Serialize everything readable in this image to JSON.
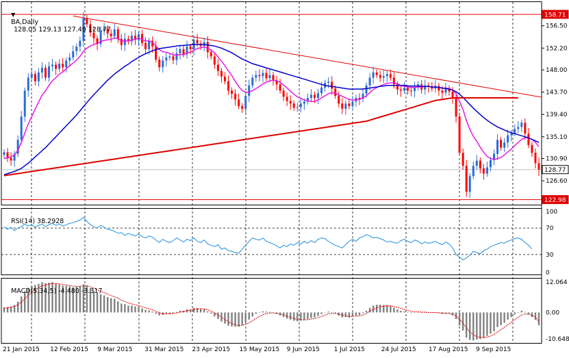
{
  "header": {
    "symbol_label": "BA,Daily",
    "ohlc": "128.05 129.13 127.49 128.77"
  },
  "rsi_header": {
    "label": "RSI(14) 38.2928"
  },
  "macd_header": {
    "label": "MACD(5,34,5) -4.480 -3.317"
  },
  "colors": {
    "background": "#ffffff",
    "candle_up_fill": "#2a6bd8",
    "candle_down_fill": "#ff0000",
    "sma_short": "#e619e6",
    "sma_mid": "#0000cc",
    "sma_long": "#e00000",
    "trendline": "#e00000",
    "rsi_line": "#1e8fe0",
    "macd_hist": "#808080",
    "macd_signal": "#e00000",
    "grid": "#000000",
    "price_tag_bg": "#e00000"
  },
  "chart_data": [
    {
      "type": "line",
      "title": "BA,Daily",
      "subtype": "candlestick",
      "ylim": [
        122.0,
        159.5
      ],
      "y_ticks": [
        "156.50",
        "152.20",
        "148.00",
        "143.70",
        "139.40",
        "135.10",
        "130.90",
        "126.60"
      ],
      "price_tags": {
        "top": "158.71",
        "current": "128.77",
        "bottom": "122.98"
      },
      "x_tick_labels": [
        "21 Jan 2015",
        "12 Feb 2015",
        "9 Mar 2015",
        "31 Mar 2015",
        "23 Apr 2015",
        "15 May 2015",
        "9 Jun 2015",
        "1 Jul 2015",
        "24 Jul 2015",
        "17 Aug 2015",
        "9 Sep 2015"
      ],
      "close": [
        132.1,
        131.0,
        130.5,
        131.8,
        134.5,
        139.0,
        144.0,
        146.5,
        147.2,
        145.8,
        147.5,
        148.4,
        146.5,
        148.7,
        149.0,
        148.2,
        149.2,
        148.5,
        149.8,
        150.4,
        151.6,
        152.5,
        153.6,
        158.0,
        156.8,
        155.2,
        154.1,
        153.0,
        155.5,
        156.0,
        155.0,
        154.5,
        155.8,
        154.0,
        152.8,
        154.0,
        153.5,
        154.6,
        153.8,
        154.9,
        153.2,
        152.0,
        153.6,
        152.5,
        150.0,
        148.5,
        149.8,
        150.4,
        150.6,
        149.9,
        151.2,
        152.0,
        151.0,
        152.5,
        152.0,
        153.8,
        153.1,
        152.6,
        153.4,
        151.4,
        150.6,
        149.0,
        147.8,
        146.7,
        145.8,
        144.0,
        143.4,
        142.3,
        141.0,
        140.5,
        143.0,
        145.0,
        146.5,
        147.0,
        146.8,
        147.4,
        146.4,
        147.0,
        146.0,
        145.2,
        144.0,
        142.8,
        142.0,
        141.5,
        140.7,
        140.8,
        141.5,
        141.9,
        142.6,
        143.2,
        142.6,
        143.5,
        144.6,
        145.5,
        145.7,
        144.4,
        143.0,
        141.5,
        140.5,
        141.5,
        141.0,
        141.9,
        142.6,
        142.4,
        143.4,
        145.0,
        146.5,
        147.5,
        147.0,
        146.5,
        146.8,
        147.2,
        146.5,
        145.2,
        144.2,
        144.0,
        144.5,
        144.0,
        143.9,
        144.6,
        145.2,
        144.2,
        145.0,
        144.8,
        144.4,
        144.9,
        144.0,
        143.6,
        144.4,
        143.8,
        142.5,
        139.0,
        132.0,
        129.5,
        124.5,
        127.5,
        129.5,
        130.5,
        129.0,
        128.0,
        129.2,
        130.6,
        131.8,
        134.5,
        133.0,
        134.0,
        135.4,
        135.8,
        136.6,
        137.0,
        137.8,
        135.7,
        133.5,
        132.0,
        130.0,
        128.77
      ],
      "series": [
        {
          "name": "",
          "values": [
            130.9,
            131.0,
            131.2,
            131.6,
            132.5,
            134.0,
            135.8,
            137.6,
            139.0,
            140.4,
            141.8,
            143.1,
            144.0,
            145.0,
            145.9,
            146.5,
            147.2,
            147.6,
            148.2,
            148.8,
            149.3,
            149.9,
            150.6,
            151.6,
            152.2,
            152.6,
            152.9,
            153.1,
            153.4,
            153.7,
            153.8,
            153.9,
            154.2,
            154.0,
            153.6,
            153.6,
            153.6,
            153.8,
            153.9,
            154.1,
            153.9,
            153.6,
            153.6,
            153.3,
            152.6,
            151.9,
            151.5,
            151.4,
            151.2,
            150.9,
            150.8,
            151.0,
            150.9,
            151.3,
            151.4,
            151.8,
            152.1,
            152.3,
            152.4,
            152.2,
            151.8,
            151.3,
            150.5,
            149.7,
            148.8,
            147.8,
            146.9,
            145.8,
            144.8,
            144.0,
            143.7,
            143.7,
            144.0,
            144.4,
            144.8,
            145.3,
            145.6,
            145.9,
            146.0,
            145.9,
            145.6,
            145.1,
            144.5,
            143.9,
            143.3,
            142.8,
            142.5,
            142.2,
            142.0,
            141.9,
            141.9,
            142.2,
            142.6,
            143.0,
            143.4,
            143.6,
            143.5,
            143.2,
            142.9,
            142.6,
            142.3,
            142.2,
            142.2,
            142.3,
            142.6,
            143.0,
            143.6,
            144.2,
            144.6,
            144.9,
            145.2,
            145.4,
            145.5,
            145.5,
            145.3,
            145.0,
            144.8,
            144.7,
            144.6,
            144.6,
            144.7,
            144.7,
            144.8,
            144.8,
            144.7,
            144.7,
            144.6,
            144.5,
            144.5,
            144.4,
            144.1,
            143.4,
            141.9,
            140.4,
            138.2,
            136.5,
            135.2,
            134.2,
            133.1,
            132.1,
            131.3,
            130.9,
            130.7,
            130.9,
            131.1,
            131.6,
            132.2,
            132.7,
            133.4,
            134.0,
            134.6,
            134.9,
            134.9,
            134.6,
            134.0,
            133.2
          ]
        },
        {
          "name": "",
          "values": [
            127.8,
            128.0,
            128.2,
            128.4,
            128.7,
            129.0,
            129.5,
            130.0,
            130.6,
            131.2,
            131.8,
            132.4,
            133.0,
            133.7,
            134.4,
            135.1,
            135.8,
            136.5,
            137.2,
            137.9,
            138.6,
            139.3,
            140.1,
            140.9,
            141.7,
            142.5,
            143.2,
            143.9,
            144.6,
            145.3,
            146.0,
            146.6,
            147.2,
            147.7,
            148.2,
            148.7,
            149.1,
            149.6,
            150.0,
            150.4,
            150.8,
            151.1,
            151.4,
            151.7,
            151.9,
            152.1,
            152.2,
            152.3,
            152.4,
            152.5,
            152.6,
            152.7,
            152.7,
            152.8,
            152.8,
            152.9,
            152.9,
            152.9,
            152.9,
            152.8,
            152.7,
            152.6,
            152.4,
            152.2,
            151.9,
            151.6,
            151.3,
            150.9,
            150.5,
            150.1,
            149.8,
            149.5,
            149.2,
            149.0,
            148.8,
            148.6,
            148.4,
            148.2,
            148.0,
            147.8,
            147.6,
            147.4,
            147.2,
            147.0,
            146.8,
            146.6,
            146.4,
            146.2,
            146.0,
            145.8,
            145.6,
            145.4,
            145.2,
            145.0,
            144.9,
            144.8,
            144.7,
            144.6,
            144.5,
            144.4,
            144.3,
            144.3,
            144.3,
            144.3,
            144.3,
            144.4,
            144.5,
            144.6,
            144.7,
            144.8,
            144.9,
            145.0,
            145.0,
            145.0,
            145.0,
            145.0,
            145.0,
            144.9,
            144.9,
            144.9,
            144.9,
            144.8,
            144.8,
            144.8,
            144.7,
            144.7,
            144.6,
            144.5,
            144.4,
            144.3,
            144.1,
            143.8,
            143.3,
            142.7,
            142.0,
            141.3,
            140.6,
            140.0,
            139.4,
            138.8,
            138.3,
            137.8,
            137.4,
            137.0,
            136.7,
            136.4,
            136.1,
            135.9,
            135.7,
            135.5,
            135.3,
            135.1,
            134.9,
            134.6,
            134.3,
            134.0
          ]
        },
        {
          "name": "",
          "values": [
            127.6,
            127.7,
            127.8,
            127.9,
            128.0,
            128.1,
            128.2,
            128.3,
            128.4,
            128.5,
            128.6,
            128.7,
            128.8,
            128.9,
            129.0,
            129.1,
            129.2,
            129.3,
            129.4,
            129.5,
            129.6,
            129.7,
            129.8,
            129.9,
            130.0,
            130.1,
            130.2,
            130.3,
            130.4,
            130.5,
            130.6,
            130.7,
            130.8,
            130.9,
            131.0,
            131.1,
            131.2,
            131.3,
            131.4,
            131.5,
            131.6,
            131.7,
            131.8,
            131.9,
            132.0,
            132.1,
            132.2,
            132.3,
            132.4,
            132.5,
            132.6,
            132.7,
            132.8,
            132.9,
            133.0,
            133.1,
            133.2,
            133.3,
            133.4,
            133.5,
            133.6,
            133.7,
            133.8,
            133.9,
            134.0,
            134.1,
            134.2,
            134.3,
            134.4,
            134.5,
            134.6,
            134.7,
            134.8,
            134.9,
            135.0,
            135.1,
            135.2,
            135.3,
            135.4,
            135.5,
            135.6,
            135.7,
            135.8,
            135.9,
            136.0,
            136.1,
            136.2,
            136.3,
            136.4,
            136.5,
            136.6,
            136.7,
            136.8,
            136.9,
            137.0,
            137.1,
            137.2,
            137.3,
            137.4,
            137.5,
            137.6,
            137.7,
            137.8,
            137.9,
            138.0,
            138.1,
            138.3,
            138.5,
            138.7,
            138.9,
            139.1,
            139.3,
            139.5,
            139.7,
            139.9,
            140.1,
            140.3,
            140.5,
            140.7,
            140.9,
            141.1,
            141.3,
            141.5,
            141.7,
            141.9,
            142.1,
            142.2,
            142.3,
            142.4,
            142.5,
            142.6,
            142.6,
            142.6,
            142.6,
            142.6,
            142.6,
            142.6,
            142.6,
            142.6,
            142.6,
            142.6,
            142.6,
            142.6,
            142.6,
            142.6,
            142.6,
            142.6,
            142.6,
            142.6,
            142.6
          ]
        }
      ],
      "trendlines": [
        {
          "from": [
            20,
            158.4
          ],
          "to": [
            150,
            143.4
          ]
        }
      ],
      "horizontal_levels": [
        158.71,
        122.98
      ]
    },
    {
      "type": "line",
      "title": "RSI(14) 38.2928",
      "ylim": [
        0,
        100
      ],
      "y_ticks": [
        "100",
        "70",
        "30",
        "0"
      ],
      "levels": [
        70,
        30
      ],
      "values": [
        72,
        68,
        71,
        66,
        70,
        72,
        76,
        73,
        75,
        71,
        74,
        76,
        72,
        75,
        77,
        74,
        76,
        73,
        75,
        77,
        78,
        80,
        82,
        86,
        80,
        75,
        72,
        70,
        74,
        71,
        68,
        67,
        65,
        62,
        63,
        59,
        62,
        60,
        58,
        61,
        57,
        55,
        58,
        56,
        52,
        48,
        53,
        50,
        48,
        51,
        55,
        52,
        49,
        53,
        51,
        55,
        50,
        48,
        52,
        46,
        44,
        42,
        45,
        38,
        40,
        36,
        35,
        33,
        32,
        38,
        44,
        50,
        55,
        53,
        52,
        55,
        50,
        48,
        46,
        43,
        40,
        44,
        42,
        46,
        44,
        48,
        46,
        50,
        47,
        51,
        48,
        53,
        55,
        54,
        50,
        47,
        44,
        42,
        40,
        45,
        50,
        53,
        50,
        55,
        57,
        60,
        58,
        55,
        56,
        54,
        52,
        49,
        50,
        48,
        47,
        51,
        53,
        50,
        48,
        52,
        50,
        46,
        49,
        47,
        48,
        50,
        47,
        45,
        49,
        46,
        40,
        30,
        26,
        22,
        25,
        29,
        35,
        33,
        31,
        36,
        38,
        42,
        44,
        46,
        48,
        47,
        50,
        52,
        54,
        55,
        53,
        48,
        44,
        38.3
      ]
    },
    {
      "type": "bar",
      "title": "MACD(5,34,5) -4.480 -3.317",
      "ylim": [
        -10.648,
        12.064
      ],
      "y_ticks": [
        "12.064",
        "0.00",
        "-10.648"
      ],
      "histogram": [
        1.8,
        1.9,
        2.1,
        2.6,
        3.8,
        5.6,
        7.4,
        8.6,
        9.2,
        9.6,
        10.0,
        10.6,
        10.2,
        10.4,
        10.6,
        10.1,
        9.8,
        9.4,
        9.3,
        9.1,
        8.8,
        9.0,
        9.2,
        9.8,
        9.3,
        8.4,
        7.5,
        6.8,
        6.4,
        6.0,
        5.4,
        5.0,
        4.8,
        3.9,
        3.1,
        2.9,
        2.4,
        2.4,
        2.1,
        2.0,
        1.4,
        0.9,
        0.7,
        0.3,
        -0.5,
        -1.0,
        -0.9,
        -0.6,
        -0.4,
        -0.3,
        0.2,
        0.6,
        0.6,
        1.1,
        1.1,
        1.6,
        1.5,
        1.2,
        1.1,
        0.4,
        -0.4,
        -1.4,
        -2.3,
        -3.2,
        -3.9,
        -4.6,
        -4.9,
        -5.0,
        -5.0,
        -4.4,
        -3.5,
        -2.5,
        -1.4,
        -0.5,
        0.0,
        0.4,
        0.3,
        0.2,
        -0.1,
        -0.5,
        -1.0,
        -1.6,
        -2.1,
        -2.5,
        -2.9,
        -3.1,
        -2.8,
        -2.6,
        -2.3,
        -1.9,
        -1.7,
        -1.2,
        -0.6,
        0.0,
        0.3,
        0.1,
        -0.4,
        -1.1,
        -1.7,
        -1.6,
        -1.8,
        -1.4,
        -1.1,
        -0.9,
        -0.3,
        0.6,
        1.6,
        2.4,
        2.7,
        2.7,
        2.6,
        2.6,
        2.4,
        1.7,
        1.1,
        0.6,
        0.4,
        0.1,
        -0.2,
        0.0,
        0.1,
        -0.1,
        0.0,
        0.0,
        -0.1,
        0.0,
        -0.3,
        -0.5,
        -0.4,
        -0.5,
        -1.0,
        -2.3,
        -4.6,
        -6.3,
        -8.8,
        -9.6,
        -9.8,
        -9.5,
        -9.3,
        -8.9,
        -8.2,
        -7.4,
        -6.6,
        -5.1,
        -4.4,
        -3.6,
        -2.5,
        -1.6,
        -0.7,
        -0.1,
        0.6,
        0.2,
        -0.7,
        -1.6,
        -2.6,
        -4.48
      ],
      "signal": [
        1.5,
        1.6,
        1.8,
        2.1,
        2.7,
        3.6,
        4.8,
        6.0,
        7.0,
        7.9,
        8.6,
        9.3,
        9.6,
        9.9,
        10.1,
        10.1,
        10.0,
        9.8,
        9.6,
        9.4,
        9.2,
        9.1,
        9.1,
        9.4,
        9.4,
        9.0,
        8.5,
        7.9,
        7.4,
        6.9,
        6.4,
        5.9,
        5.5,
        5.0,
        4.3,
        3.8,
        3.3,
        3.0,
        2.7,
        2.4,
        2.0,
        1.6,
        1.3,
        0.9,
        0.4,
        -0.1,
        -0.4,
        -0.5,
        -0.5,
        -0.4,
        -0.2,
        0.1,
        0.3,
        0.6,
        0.8,
        1.1,
        1.3,
        1.3,
        1.2,
        0.9,
        0.5,
        -0.2,
        -0.9,
        -1.7,
        -2.5,
        -3.3,
        -3.9,
        -4.3,
        -4.6,
        -4.5,
        -4.2,
        -3.6,
        -2.9,
        -2.1,
        -1.4,
        -0.8,
        -0.4,
        -0.2,
        -0.2,
        -0.3,
        -0.6,
        -0.9,
        -1.3,
        -1.7,
        -2.1,
        -2.5,
        -2.6,
        -2.6,
        -2.5,
        -2.3,
        -2.1,
        -1.8,
        -1.4,
        -0.9,
        -0.5,
        -0.3,
        -0.3,
        -0.6,
        -0.9,
        -1.2,
        -1.4,
        -1.4,
        -1.3,
        -1.2,
        -0.9,
        -0.4,
        0.4,
        1.1,
        1.6,
        2.0,
        2.2,
        2.3,
        2.3,
        2.1,
        1.8,
        1.4,
        1.1,
        0.7,
        0.4,
        0.3,
        0.2,
        0.1,
        0.1,
        0.0,
        0.0,
        0.0,
        -0.1,
        -0.2,
        -0.3,
        -0.4,
        -0.6,
        -1.2,
        -2.4,
        -3.7,
        -5.4,
        -6.8,
        -7.8,
        -8.4,
        -8.7,
        -8.8,
        -8.6,
        -8.2,
        -7.7,
        -6.8,
        -6.0,
        -5.2,
        -4.3,
        -3.4,
        -2.5,
        -1.7,
        -0.9,
        -0.5,
        -0.6,
        -1.0,
        -1.6,
        -3.317
      ]
    }
  ]
}
